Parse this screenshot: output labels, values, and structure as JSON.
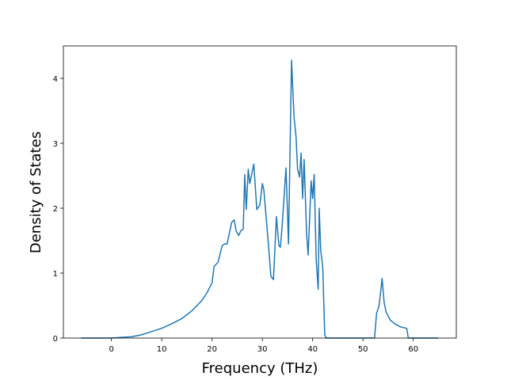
{
  "chart_data": {
    "type": "line",
    "xlabel": "Frequency (THz)",
    "ylabel": "Density of States",
    "color": "#1f77b4",
    "x": [
      -6,
      0,
      2,
      4,
      6,
      8,
      10,
      12,
      14,
      16,
      18,
      19,
      20,
      20.4,
      21.2,
      22,
      22.5,
      23,
      23.4,
      23.9,
      24.4,
      24.8,
      25.3,
      25.7,
      26.2,
      26.5,
      26.8,
      27.2,
      27.5,
      28.3,
      28.9,
      29.5,
      30,
      30.3,
      31.2,
      31.7,
      32.2,
      32.8,
      33.3,
      33.6,
      34,
      34.7,
      35.2,
      35.8,
      36.3,
      36.7,
      37,
      37.4,
      37.7,
      38,
      38.3,
      38.8,
      39.1,
      39.7,
      40,
      40.3,
      40.7,
      41.1,
      41.3,
      41.6,
      42,
      42.4,
      42.7,
      52.3,
      52.7,
      53.2,
      53.5,
      53.8,
      54.2,
      54.6,
      55.4,
      56.3,
      57.5,
      58.7,
      59,
      65
    ],
    "values": [
      0,
      0,
      0.01,
      0.02,
      0.05,
      0.1,
      0.15,
      0.22,
      0.3,
      0.42,
      0.58,
      0.7,
      0.85,
      1.1,
      1.17,
      1.42,
      1.45,
      1.45,
      1.6,
      1.78,
      1.82,
      1.65,
      1.58,
      1.65,
      1.68,
      2.52,
      1.98,
      2.6,
      2.38,
      2.68,
      1.98,
      2.05,
      2.38,
      2.28,
      1.45,
      0.95,
      0.9,
      1.87,
      1.42,
      1.4,
      1.8,
      2.62,
      1.45,
      4.28,
      3.4,
      3.1,
      2.6,
      2.48,
      2.85,
      2.15,
      2.75,
      1.6,
      1.28,
      2.42,
      2.15,
      2.52,
      1.2,
      0.75,
      2.0,
      1.35,
      1.1,
      0.05,
      0,
      0,
      0.38,
      0.5,
      0.7,
      0.92,
      0.55,
      0.4,
      0.28,
      0.22,
      0.17,
      0.15,
      0,
      0
    ],
    "xlim": [
      -9.55,
      68.55
    ],
    "xticks": [
      0,
      10,
      20,
      30,
      40,
      50,
      60
    ],
    "ylim": [
      0,
      4.5
    ],
    "yticks": [
      0,
      1,
      2,
      3,
      4
    ]
  }
}
